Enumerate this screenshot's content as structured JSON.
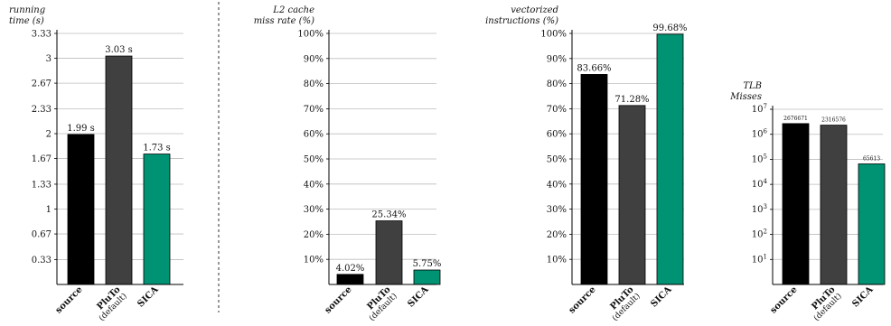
{
  "colors": {
    "source": "#000000",
    "pluto": "#404040",
    "sica": "#009373",
    "grid": "#bdbdbd",
    "axis": "#000000",
    "divider": "#333333"
  },
  "categories": [
    {
      "name": "source",
      "sub": ""
    },
    {
      "name": "PluTo",
      "sub": "(default)"
    },
    {
      "name": "SICA",
      "sub": ""
    }
  ],
  "chart_data": [
    {
      "type": "bar",
      "ylabel_lines": [
        "running",
        "time (s)"
      ],
      "categories": [
        "source",
        "PluTo (default)",
        "SICA"
      ],
      "values": [
        1.99,
        3.03,
        1.73
      ],
      "value_labels": [
        "1.99 s",
        "3.03 s",
        "1.73 s"
      ],
      "ylim": [
        0,
        3.33
      ],
      "yticks": [
        0.33,
        0.67,
        1,
        1.33,
        1.67,
        2,
        2.33,
        2.67,
        3,
        3.33
      ],
      "ytick_labels": [
        "0.33",
        "0.67",
        "1",
        "1.33",
        "1.67",
        "2",
        "2.33",
        "2.67",
        "3",
        "3.33"
      ],
      "grid": true
    },
    {
      "type": "bar",
      "ylabel_lines": [
        "L2 cache",
        "miss rate (%)"
      ],
      "categories": [
        "source",
        "PluTo (default)",
        "SICA"
      ],
      "values": [
        4.02,
        25.34,
        5.75
      ],
      "value_labels": [
        "4.02%",
        "25.34%",
        "5.75%"
      ],
      "ylim": [
        0,
        100
      ],
      "yticks": [
        10,
        20,
        30,
        40,
        50,
        60,
        70,
        80,
        90,
        100
      ],
      "ytick_labels": [
        "10%",
        "20%",
        "30%",
        "40%",
        "50%",
        "60%",
        "70%",
        "80%",
        "90%",
        "100%"
      ],
      "grid": true
    },
    {
      "type": "bar",
      "ylabel_lines": [
        "vectorized",
        "instructions (%)"
      ],
      "categories": [
        "source",
        "PluTo (default)",
        "SICA"
      ],
      "values": [
        83.66,
        71.28,
        99.68
      ],
      "value_labels": [
        "83.66%",
        "71.28%",
        "99.68%"
      ],
      "ylim": [
        0,
        100
      ],
      "yticks": [
        10,
        20,
        30,
        40,
        50,
        60,
        70,
        80,
        90,
        100
      ],
      "ytick_labels": [
        "10%",
        "20%",
        "30%",
        "40%",
        "50%",
        "60%",
        "70%",
        "80%",
        "90%",
        "100%"
      ],
      "grid": true
    },
    {
      "type": "bar",
      "ylabel_lines": [
        "TLB",
        "Misses"
      ],
      "categories": [
        "source",
        "PluTo (default)",
        "SICA"
      ],
      "values": [
        2676671,
        2316576,
        65613
      ],
      "value_labels": [
        "2676671",
        "2316576",
        "65613"
      ],
      "yscale": "log",
      "ylim": [
        1,
        10000000
      ],
      "ytick_exponents": [
        1,
        2,
        3,
        4,
        5,
        6,
        7
      ],
      "ytick_base": "10",
      "grid": true
    }
  ]
}
